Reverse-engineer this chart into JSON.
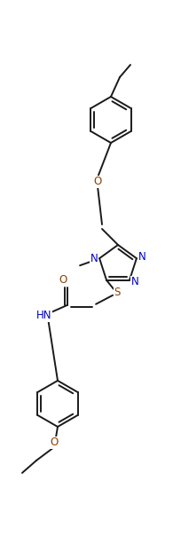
{
  "bg_color": "#ffffff",
  "bond_color": "#1a1a1a",
  "atom_colors": {
    "N": "#0000cc",
    "O": "#8b4000",
    "S": "#8b4000",
    "C": "#1a1a1a"
  },
  "figsize": [
    1.95,
    6.03
  ],
  "dpi": 100
}
